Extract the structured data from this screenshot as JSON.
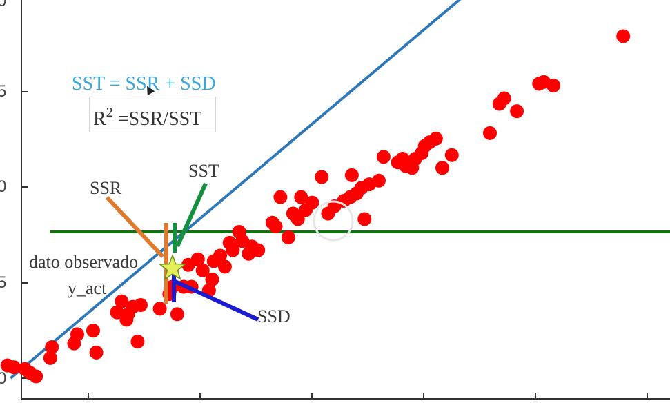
{
  "chart_data": {
    "type": "scatter",
    "title": "",
    "xlabel": "",
    "ylabel": "",
    "y_tick_labels": [
      "0",
      "5",
      "0",
      "5",
      "0"
    ],
    "mean_line_y": 8,
    "regression_line": {
      "x": [
        -4.2,
        24.5
      ],
      "y": [
        0.0,
        21.0
      ]
    },
    "points": [
      [
        -4.4,
        0.7
      ],
      [
        -4.0,
        0.6
      ],
      [
        -3.3,
        0.5
      ],
      [
        -3.0,
        0.3
      ],
      [
        -2.6,
        0.1
      ],
      [
        -1.7,
        1.1
      ],
      [
        -1.6,
        1.7
      ],
      [
        -0.2,
        1.9
      ],
      [
        0.0,
        2.4
      ],
      [
        1.0,
        2.6
      ],
      [
        1.2,
        1.4
      ],
      [
        2.5,
        3.6
      ],
      [
        2.8,
        4.2
      ],
      [
        3.1,
        3.2
      ],
      [
        3.2,
        3.5
      ],
      [
        3.5,
        3.9
      ],
      [
        3.8,
        2.0
      ],
      [
        4.0,
        4.0
      ],
      [
        5.2,
        3.8
      ],
      [
        5.8,
        4.6
      ],
      [
        6.0,
        5.0
      ],
      [
        6.3,
        3.5
      ],
      [
        6.7,
        5.0
      ],
      [
        7.0,
        6.2
      ],
      [
        7.2,
        5.0
      ],
      [
        7.6,
        6.5
      ],
      [
        7.9,
        5.9
      ],
      [
        8.3,
        4.8
      ],
      [
        8.5,
        5.4
      ],
      [
        8.6,
        6.4
      ],
      [
        9.0,
        6.7
      ],
      [
        9.3,
        6.1
      ],
      [
        9.6,
        7.4
      ],
      [
        9.8,
        7.0
      ],
      [
        10.2,
        8.0
      ],
      [
        10.4,
        7.5
      ],
      [
        10.8,
        6.8
      ],
      [
        11.0,
        7.2
      ],
      [
        11.4,
        7.0
      ],
      [
        12.3,
        8.5
      ],
      [
        12.5,
        8.3
      ],
      [
        12.8,
        9.9
      ],
      [
        13.3,
        7.7
      ],
      [
        13.6,
        9.0
      ],
      [
        13.9,
        8.7
      ],
      [
        14.1,
        9.9
      ],
      [
        14.4,
        9.2
      ],
      [
        14.8,
        9.6
      ],
      [
        15.4,
        11.0
      ],
      [
        15.8,
        9.0
      ],
      [
        16.2,
        9.4
      ],
      [
        16.8,
        9.7
      ],
      [
        17.2,
        9.9
      ],
      [
        17.3,
        11.1
      ],
      [
        17.6,
        10.1
      ],
      [
        17.9,
        10.4
      ],
      [
        18.1,
        8.7
      ],
      [
        18.4,
        10.6
      ],
      [
        19.0,
        10.8
      ],
      [
        19.3,
        12.1
      ],
      [
        20.2,
        11.8
      ],
      [
        20.5,
        12.0
      ],
      [
        20.7,
        11.6
      ],
      [
        21.1,
        11.5
      ],
      [
        21.3,
        12.0
      ],
      [
        21.7,
        12.3
      ],
      [
        21.9,
        12.7
      ],
      [
        22.2,
        12.9
      ],
      [
        22.6,
        13.1
      ],
      [
        23.0,
        11.5
      ],
      [
        23.6,
        12.2
      ],
      [
        26.0,
        13.4
      ],
      [
        26.6,
        15.0
      ],
      [
        26.9,
        15.3
      ],
      [
        27.7,
        14.6
      ],
      [
        29.1,
        16.1
      ],
      [
        29.4,
        16.2
      ],
      [
        30.0,
        16.0
      ],
      [
        34.4,
        18.7
      ]
    ],
    "observed_point": [
      6.0,
      6.0
    ],
    "annotations": [
      "SST = SSR + SSD",
      "R",
      "2",
      " =SSR/SST",
      "SSR",
      "SST",
      "dato observado",
      "y_act",
      "SSD"
    ],
    "colors": {
      "points": "#ff0000",
      "regression": "#2f78b7",
      "mean": "#157015",
      "ssr": "#e07a2e",
      "sst": "#159040",
      "ssd": "#1c1ccf",
      "star": "#e4f05a"
    }
  },
  "equations": {
    "sst_eq": "SST = SSR + SSD",
    "r2_base": "R",
    "r2_exp": "2",
    "r2_rest": " =SSR/SST"
  },
  "labels": {
    "ssr": "SSR",
    "sst": "SST",
    "observed": "dato observado",
    "y_act": "y_act",
    "ssd": "SSD"
  }
}
